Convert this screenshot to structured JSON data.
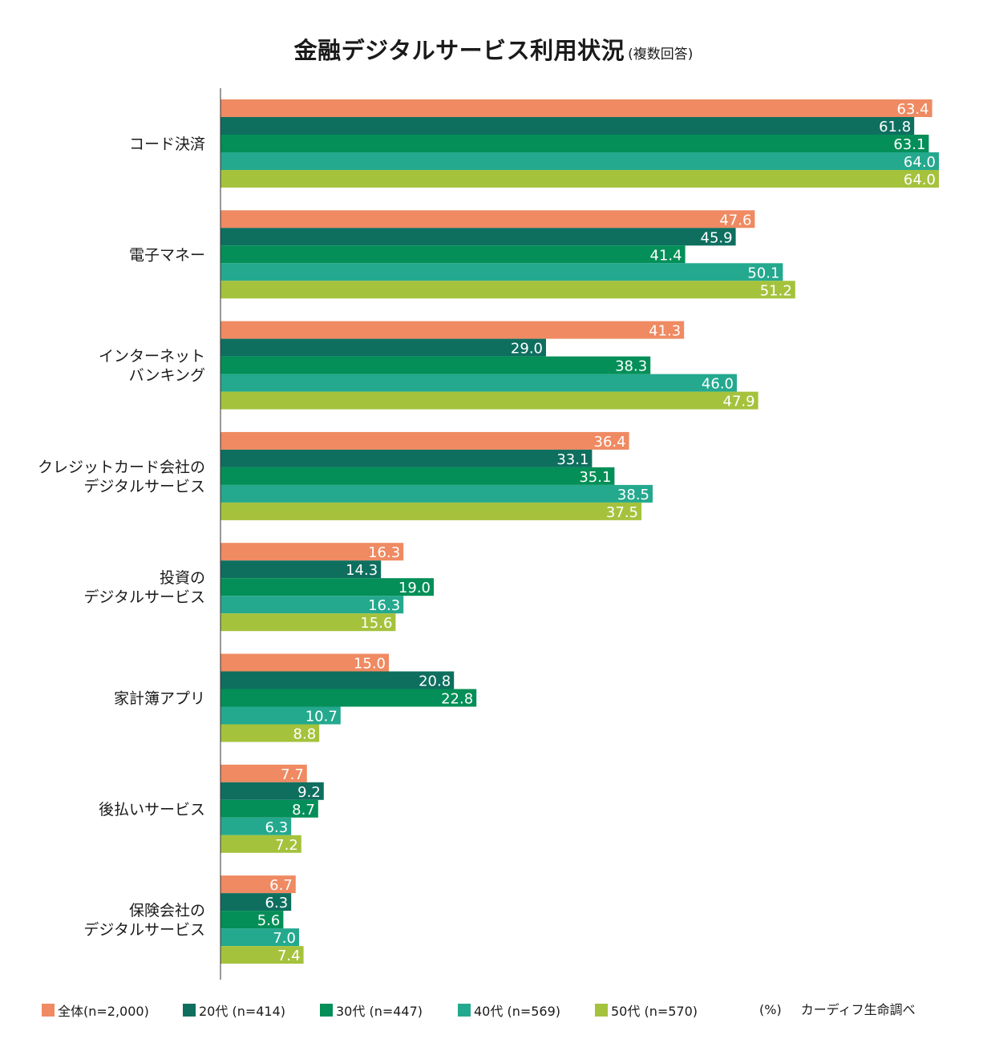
{
  "chart_data": {
    "type": "bar",
    "orientation": "horizontal",
    "title": "金融デジタルサービス利用状況",
    "subtitle": "(複数回答)",
    "unit_label": "(%)",
    "source": "カーディフ生命調べ",
    "categories": [
      [
        "コード決済"
      ],
      [
        "電子マネー"
      ],
      [
        "インターネット",
        "バンキング"
      ],
      [
        "クレジットカード会社の",
        "デジタルサービス"
      ],
      [
        "投資の",
        "デジタルサービス"
      ],
      [
        "家計簿アプリ"
      ],
      [
        "後払いサービス"
      ],
      [
        "保険会社の",
        "デジタルサービス"
      ]
    ],
    "xlim": [
      0,
      70
    ],
    "grid": false,
    "legend_position": "bottom",
    "series": [
      {
        "name": "全体(n=2,000)",
        "color": "#ef8a62",
        "labels": [
          "63.4",
          "47.6",
          "41.3",
          "36.4",
          "16.3",
          "15.0",
          "7.7",
          "6.7"
        ],
        "values": [
          63.4,
          47.6,
          41.3,
          36.4,
          16.3,
          15.0,
          7.7,
          6.7
        ]
      },
      {
        "name": "20代 (n=414)",
        "color": "#0e6f5f",
        "labels": [
          "61.8",
          "45.9",
          "29.0",
          "33.1",
          "14.3",
          "20.8",
          "9.2",
          "6.3"
        ],
        "values": [
          61.8,
          45.9,
          29.0,
          33.1,
          14.3,
          20.8,
          9.2,
          6.3
        ]
      },
      {
        "name": "30代 (n=447)",
        "color": "#038f57",
        "labels": [
          "63.1",
          "41.4",
          "38.3",
          "35.1",
          "19.0",
          "22.8",
          "8.7",
          "5.6"
        ],
        "values": [
          63.1,
          41.4,
          38.3,
          35.1,
          19.0,
          22.8,
          8.7,
          5.6
        ]
      },
      {
        "name": "40代 (n=569)",
        "color": "#24a98e",
        "labels": [
          "64.0",
          "50.1",
          "46.0",
          "38.5",
          "16.3",
          "10.7",
          "6.3",
          "7.0"
        ],
        "values": [
          64.0,
          50.1,
          46.0,
          38.5,
          16.3,
          10.7,
          6.3,
          7.0
        ]
      },
      {
        "name": "50代 (n=570)",
        "color": "#a5c23d",
        "labels": [
          "64.0",
          "51.2",
          "47.9",
          "37.5",
          "15.6",
          "8.8",
          "7.2",
          "7.4"
        ],
        "values": [
          64.0,
          51.2,
          47.9,
          37.5,
          15.6,
          8.8,
          7.2,
          7.4
        ]
      }
    ]
  }
}
